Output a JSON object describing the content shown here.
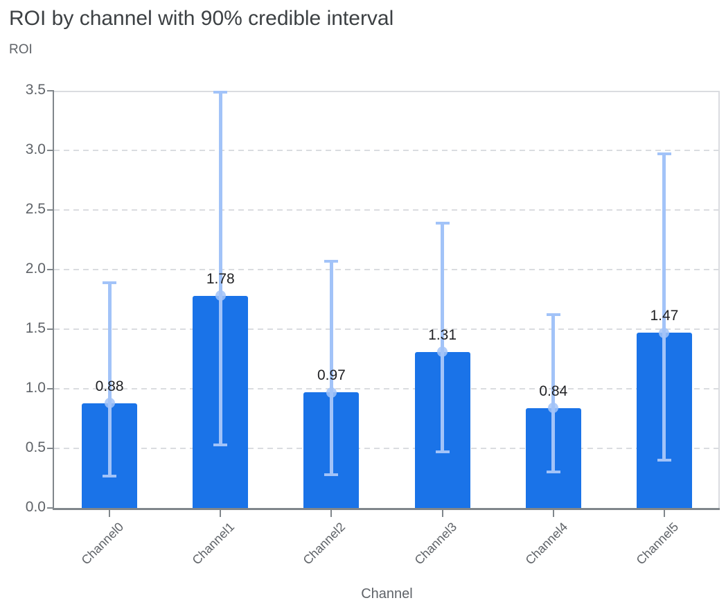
{
  "title": "ROI by channel with 90% credible interval",
  "y_axis_title": "ROI",
  "x_axis_title": "Channel",
  "colors": {
    "bar": "#1a73e8",
    "error_bar": "#a2c3f8",
    "title_text": "#3c4043",
    "axis_text": "#5f6368",
    "value_text": "#202124",
    "gridline": "#dadce0",
    "axis_line": "#80868b",
    "background": "#ffffff"
  },
  "chart_data": {
    "type": "bar",
    "title": "ROI by channel with 90% credible interval",
    "xlabel": "Channel",
    "ylabel": "ROI",
    "categories": [
      "Channel0",
      "Channel1",
      "Channel2",
      "Channel3",
      "Channel4",
      "Channel5"
    ],
    "series": [
      {
        "name": "ROI",
        "values": [
          0.88,
          1.78,
          0.97,
          1.31,
          0.84,
          1.47
        ]
      }
    ],
    "value_labels": [
      "0.88",
      "1.78",
      "0.97",
      "1.31",
      "0.84",
      "1.47"
    ],
    "error_bars": {
      "label": "90% credible interval",
      "lower": [
        0.27,
        0.53,
        0.28,
        0.47,
        0.3,
        0.4
      ],
      "upper": [
        1.89,
        3.49,
        2.07,
        2.39,
        1.62,
        2.97
      ]
    },
    "ylim": [
      0,
      3.5
    ],
    "yticks": [
      "0.0",
      "0.5",
      "1.0",
      "1.5",
      "2.0",
      "2.5",
      "3.0",
      "3.5"
    ],
    "grid": "horizontal-dashed",
    "legend": "none",
    "bar_label_rotation_deg": -45
  }
}
